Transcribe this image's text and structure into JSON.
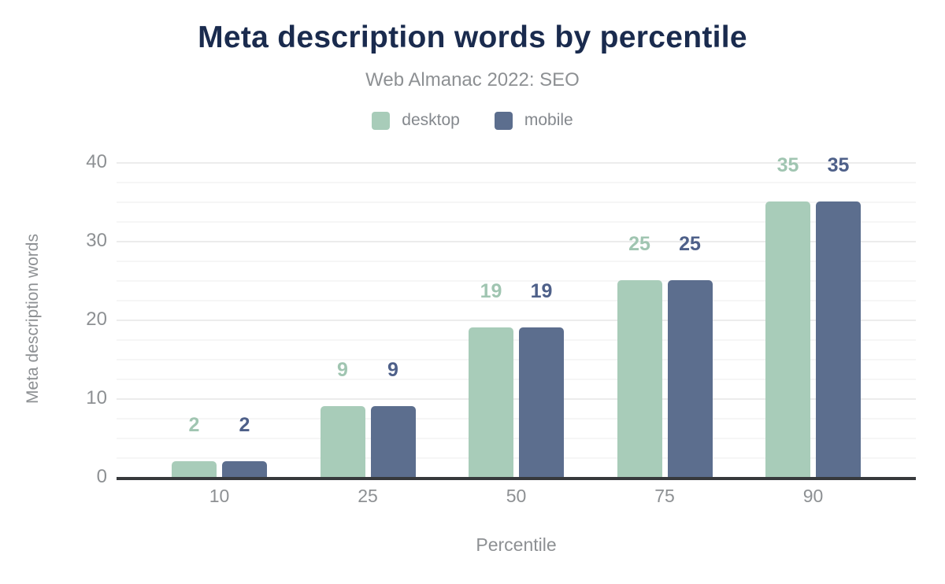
{
  "chart_data": {
    "type": "bar",
    "title": "Meta description words by percentile",
    "subtitle": "Web Almanac 2022: SEO",
    "xlabel": "Percentile",
    "ylabel": "Meta description words",
    "categories": [
      "10",
      "25",
      "50",
      "75",
      "90"
    ],
    "series": [
      {
        "name": "desktop",
        "values": [
          2,
          9,
          19,
          25,
          35
        ],
        "color": "#a8ccb9",
        "label_color": "#a0c5b1"
      },
      {
        "name": "mobile",
        "values": [
          2,
          9,
          19,
          25,
          35
        ],
        "color": "#5c6e8e",
        "label_color": "#4e6089"
      }
    ],
    "ylim": [
      0,
      40
    ],
    "yticks": [
      0,
      10,
      20,
      30,
      40
    ],
    "minor_grid_step": 2.5,
    "grid": "on",
    "legend_position": "top",
    "value_labels": "above-bars"
  },
  "colors": {
    "title_text": "#1a2b4e",
    "muted_text": "#8d9093",
    "axis_line": "#37393c",
    "grid_major": "#ececec",
    "grid_minor": "#f6f6f6",
    "background": "#ffffff"
  }
}
